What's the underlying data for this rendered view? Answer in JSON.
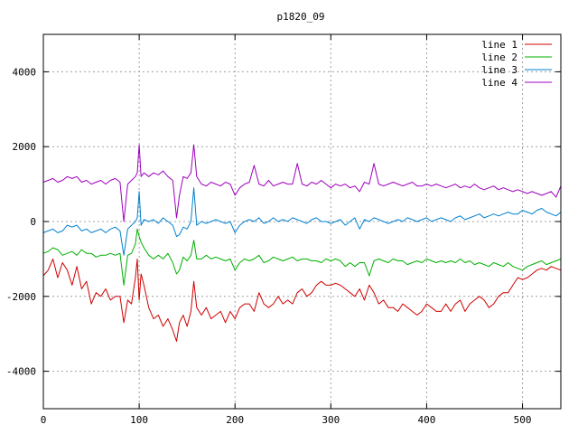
{
  "chart_data": {
    "type": "line",
    "title": "p1820_09",
    "xlabel": "",
    "ylabel": "",
    "xlim": [
      0,
      540
    ],
    "ylim": [
      -5000,
      5000
    ],
    "xticks": [
      0,
      100,
      200,
      300,
      400,
      500
    ],
    "yticks": [
      -4000,
      -2000,
      0,
      2000,
      4000
    ],
    "xtick_labels": [
      "0",
      "100",
      "200",
      "300",
      "400",
      "500"
    ],
    "ytick_labels": [
      "-4000",
      "-2000",
      "0",
      "2000",
      "4000"
    ],
    "grid": true,
    "legend_position": "top-right",
    "series": [
      {
        "name": "line 1",
        "color": "#d00000",
        "x": [
          0,
          5,
          10,
          15,
          20,
          25,
          30,
          35,
          40,
          45,
          50,
          55,
          60,
          65,
          70,
          75,
          80,
          84,
          88,
          92,
          96,
          98,
          100,
          102,
          105,
          110,
          115,
          120,
          125,
          130,
          135,
          139,
          142,
          146,
          150,
          154,
          157,
          160,
          165,
          170,
          175,
          180,
          185,
          190,
          195,
          200,
          205,
          210,
          215,
          220,
          225,
          230,
          235,
          240,
          245,
          250,
          255,
          260,
          265,
          270,
          275,
          280,
          285,
          290,
          295,
          300,
          305,
          310,
          315,
          320,
          325,
          330,
          335,
          340,
          345,
          350,
          355,
          360,
          365,
          370,
          375,
          380,
          385,
          390,
          395,
          400,
          405,
          410,
          415,
          420,
          425,
          430,
          435,
          440,
          445,
          450,
          455,
          460,
          465,
          470,
          475,
          480,
          485,
          490,
          495,
          500,
          505,
          510,
          515,
          520,
          525,
          530,
          535,
          540
        ],
        "y": [
          -1450,
          -1300,
          -1000,
          -1500,
          -1100,
          -1300,
          -1700,
          -1200,
          -1800,
          -1600,
          -2200,
          -1900,
          -2000,
          -1800,
          -2100,
          -2000,
          -2000,
          -2700,
          -2100,
          -2200,
          -1500,
          -1000,
          -2100,
          -1400,
          -1700,
          -2300,
          -2600,
          -2500,
          -2800,
          -2600,
          -2900,
          -3200,
          -2700,
          -2500,
          -2800,
          -2400,
          -1600,
          -2300,
          -2500,
          -2300,
          -2600,
          -2500,
          -2400,
          -2700,
          -2400,
          -2600,
          -2300,
          -2200,
          -2200,
          -2400,
          -1900,
          -2200,
          -2300,
          -2200,
          -2000,
          -2200,
          -2100,
          -2200,
          -1900,
          -1800,
          -2000,
          -1900,
          -1700,
          -1600,
          -1700,
          -1700,
          -1650,
          -1700,
          -1800,
          -1900,
          -2000,
          -1800,
          -2100,
          -1700,
          -1900,
          -2200,
          -2100,
          -2300,
          -2300,
          -2400,
          -2200,
          -2300,
          -2400,
          -2500,
          -2400,
          -2200,
          -2300,
          -2400,
          -2400,
          -2200,
          -2400,
          -2200,
          -2100,
          -2400,
          -2200,
          -2100,
          -2000,
          -2100,
          -2300,
          -2200,
          -2000,
          -1900,
          -1900,
          -1700,
          -1500,
          -1550,
          -1500,
          -1400,
          -1300,
          -1250,
          -1300,
          -1200,
          -1250,
          -1300
        ]
      },
      {
        "name": "line 2",
        "color": "#00b000",
        "x": [
          0,
          5,
          10,
          15,
          20,
          25,
          30,
          35,
          40,
          45,
          50,
          55,
          60,
          65,
          70,
          75,
          80,
          84,
          88,
          92,
          96,
          98,
          100,
          102,
          105,
          110,
          115,
          120,
          125,
          130,
          135,
          139,
          142,
          146,
          150,
          154,
          157,
          160,
          165,
          170,
          175,
          180,
          185,
          190,
          195,
          200,
          205,
          210,
          215,
          220,
          225,
          230,
          235,
          240,
          245,
          250,
          255,
          260,
          265,
          270,
          275,
          280,
          285,
          290,
          295,
          300,
          305,
          310,
          315,
          320,
          325,
          330,
          335,
          340,
          345,
          350,
          355,
          360,
          365,
          370,
          375,
          380,
          385,
          390,
          395,
          400,
          405,
          410,
          415,
          420,
          425,
          430,
          435,
          440,
          445,
          450,
          455,
          460,
          465,
          470,
          475,
          480,
          485,
          490,
          495,
          500,
          505,
          510,
          515,
          520,
          525,
          530,
          535,
          540
        ],
        "y": [
          -850,
          -800,
          -700,
          -750,
          -900,
          -850,
          -800,
          -900,
          -750,
          -850,
          -850,
          -950,
          -900,
          -900,
          -850,
          -900,
          -850,
          -1700,
          -900,
          -850,
          -600,
          -200,
          -400,
          -550,
          -700,
          -900,
          -1000,
          -900,
          -1000,
          -850,
          -1100,
          -1400,
          -1300,
          -950,
          -1050,
          -900,
          -500,
          -1000,
          -1000,
          -900,
          -1000,
          -950,
          -1000,
          -1050,
          -1000,
          -1300,
          -1100,
          -1000,
          -1050,
          -1000,
          -900,
          -1100,
          -1050,
          -950,
          -1000,
          -1050,
          -1000,
          -950,
          -1050,
          -1000,
          -1000,
          -1050,
          -1050,
          -1100,
          -1000,
          -1050,
          -1000,
          -1050,
          -1200,
          -1100,
          -1200,
          -1100,
          -1100,
          -1450,
          -1050,
          -1000,
          -1050,
          -1100,
          -1000,
          -1050,
          -1050,
          -1150,
          -1100,
          -1050,
          -1100,
          -1000,
          -1050,
          -1100,
          -1050,
          -1100,
          -1050,
          -1100,
          -1000,
          -1100,
          -1050,
          -1150,
          -1100,
          -1150,
          -1200,
          -1100,
          -1150,
          -1200,
          -1100,
          -1200,
          -1250,
          -1300,
          -1200,
          -1150,
          -1100,
          -1050,
          -1150,
          -1100,
          -1050,
          -1000
        ]
      },
      {
        "name": "line 3",
        "color": "#0080d0",
        "x": [
          0,
          5,
          10,
          15,
          20,
          25,
          30,
          35,
          40,
          45,
          50,
          55,
          60,
          65,
          70,
          75,
          80,
          84,
          88,
          92,
          96,
          98,
          100,
          102,
          105,
          110,
          115,
          120,
          125,
          130,
          135,
          139,
          142,
          146,
          150,
          154,
          157,
          160,
          165,
          170,
          175,
          180,
          185,
          190,
          195,
          200,
          205,
          210,
          215,
          220,
          225,
          230,
          235,
          240,
          245,
          250,
          255,
          260,
          265,
          270,
          275,
          280,
          285,
          290,
          295,
          300,
          305,
          310,
          315,
          320,
          325,
          330,
          335,
          340,
          345,
          350,
          355,
          360,
          365,
          370,
          375,
          380,
          385,
          390,
          395,
          400,
          405,
          410,
          415,
          420,
          425,
          430,
          435,
          440,
          445,
          450,
          455,
          460,
          465,
          470,
          475,
          480,
          485,
          490,
          495,
          500,
          505,
          510,
          515,
          520,
          525,
          530,
          535,
          540
        ],
        "y": [
          -300,
          -250,
          -200,
          -300,
          -250,
          -100,
          -150,
          -100,
          -250,
          -200,
          -300,
          -250,
          -200,
          -300,
          -200,
          -150,
          -250,
          -900,
          -200,
          -100,
          0,
          100,
          800,
          -100,
          50,
          0,
          50,
          -50,
          100,
          0,
          -100,
          -400,
          -350,
          -150,
          -200,
          0,
          900,
          -100,
          0,
          -50,
          0,
          50,
          0,
          -50,
          0,
          -300,
          -100,
          0,
          50,
          0,
          100,
          -50,
          0,
          100,
          0,
          50,
          0,
          100,
          50,
          0,
          -50,
          50,
          100,
          0,
          0,
          -50,
          0,
          50,
          -100,
          0,
          100,
          -200,
          50,
          0,
          100,
          50,
          0,
          -50,
          0,
          50,
          0,
          100,
          50,
          0,
          50,
          100,
          0,
          50,
          100,
          50,
          0,
          100,
          150,
          50,
          100,
          150,
          200,
          100,
          150,
          200,
          150,
          200,
          250,
          200,
          200,
          300,
          250,
          200,
          300,
          350,
          250,
          200,
          150,
          250
        ]
      },
      {
        "name": "line 4",
        "color": "#a000c0",
        "x": [
          0,
          5,
          10,
          15,
          20,
          25,
          30,
          35,
          40,
          45,
          50,
          55,
          60,
          65,
          70,
          75,
          80,
          84,
          88,
          92,
          96,
          98,
          100,
          102,
          105,
          110,
          115,
          120,
          125,
          130,
          135,
          139,
          142,
          146,
          150,
          154,
          157,
          160,
          165,
          170,
          175,
          180,
          185,
          190,
          195,
          200,
          205,
          210,
          215,
          220,
          225,
          230,
          235,
          240,
          245,
          250,
          255,
          260,
          265,
          270,
          275,
          280,
          285,
          290,
          295,
          300,
          305,
          310,
          315,
          320,
          325,
          330,
          335,
          340,
          345,
          350,
          355,
          360,
          365,
          370,
          375,
          380,
          385,
          390,
          395,
          400,
          405,
          410,
          415,
          420,
          425,
          430,
          435,
          440,
          445,
          450,
          455,
          460,
          465,
          470,
          475,
          480,
          485,
          490,
          495,
          500,
          505,
          510,
          515,
          520,
          525,
          530,
          535,
          540
        ],
        "y": [
          1050,
          1100,
          1150,
          1050,
          1100,
          1200,
          1150,
          1200,
          1050,
          1100,
          1000,
          1050,
          1100,
          1000,
          1100,
          1150,
          1050,
          0,
          1000,
          1100,
          1200,
          1300,
          2050,
          1200,
          1300,
          1200,
          1300,
          1250,
          1350,
          1200,
          1100,
          100,
          700,
          1200,
          1150,
          1300,
          2050,
          1200,
          1000,
          950,
          1050,
          1000,
          950,
          1050,
          1000,
          700,
          900,
          1000,
          1050,
          1500,
          1000,
          950,
          1100,
          950,
          1000,
          1050,
          1000,
          1000,
          1550,
          1000,
          950,
          1050,
          1000,
          1100,
          1000,
          900,
          1000,
          950,
          1000,
          900,
          950,
          800,
          1050,
          1000,
          1550,
          1000,
          950,
          1000,
          1050,
          1000,
          950,
          1000,
          1050,
          950,
          950,
          1000,
          950,
          1000,
          950,
          900,
          950,
          1000,
          900,
          950,
          900,
          1000,
          900,
          850,
          900,
          950,
          850,
          900,
          850,
          800,
          850,
          800,
          750,
          800,
          750,
          700,
          750,
          800,
          650,
          950
        ]
      }
    ]
  }
}
